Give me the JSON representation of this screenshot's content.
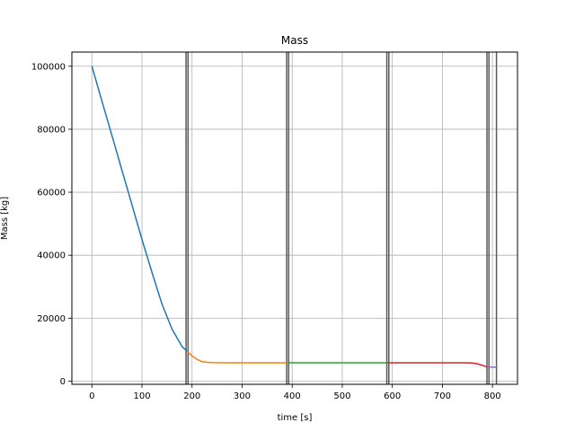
{
  "chart_data": {
    "type": "line",
    "title": "Mass",
    "xlabel": "time [s]",
    "ylabel": "Mass [kg]",
    "xlim": [
      -40,
      850
    ],
    "ylim": [
      -1000,
      104500
    ],
    "xticks": [
      0,
      100,
      200,
      300,
      400,
      500,
      600,
      700,
      800
    ],
    "yticks": [
      0,
      20000,
      40000,
      60000,
      80000,
      100000
    ],
    "grid": true,
    "vlines": [
      188,
      192,
      389,
      393,
      589,
      593,
      789,
      793,
      808
    ],
    "series": [
      {
        "color": "#1f77b4",
        "x": [
          0,
          20,
          40,
          60,
          80,
          100,
          120,
          140,
          160,
          180,
          190
        ],
        "y": [
          100000,
          89000,
          78000,
          67000,
          56000,
          45000,
          34500,
          24500,
          16500,
          11000,
          9500
        ]
      },
      {
        "color": "#ff7f0e",
        "x": [
          190,
          200,
          210,
          220,
          230,
          240,
          260,
          300,
          350,
          390
        ],
        "y": [
          9500,
          8000,
          6900,
          6200,
          6000,
          5900,
          5850,
          5850,
          5850,
          5850
        ]
      },
      {
        "color": "#2ca02c",
        "x": [
          390,
          450,
          500,
          550,
          590
        ],
        "y": [
          5850,
          5850,
          5850,
          5850,
          5850
        ]
      },
      {
        "color": "#d62728",
        "x": [
          590,
          650,
          700,
          740,
          760,
          770,
          780,
          790
        ],
        "y": [
          5850,
          5850,
          5850,
          5850,
          5800,
          5500,
          5000,
          4500
        ]
      },
      {
        "color": "#9467bd",
        "x": [
          790,
          800,
          810
        ],
        "y": [
          4500,
          4450,
          4450
        ]
      }
    ]
  }
}
